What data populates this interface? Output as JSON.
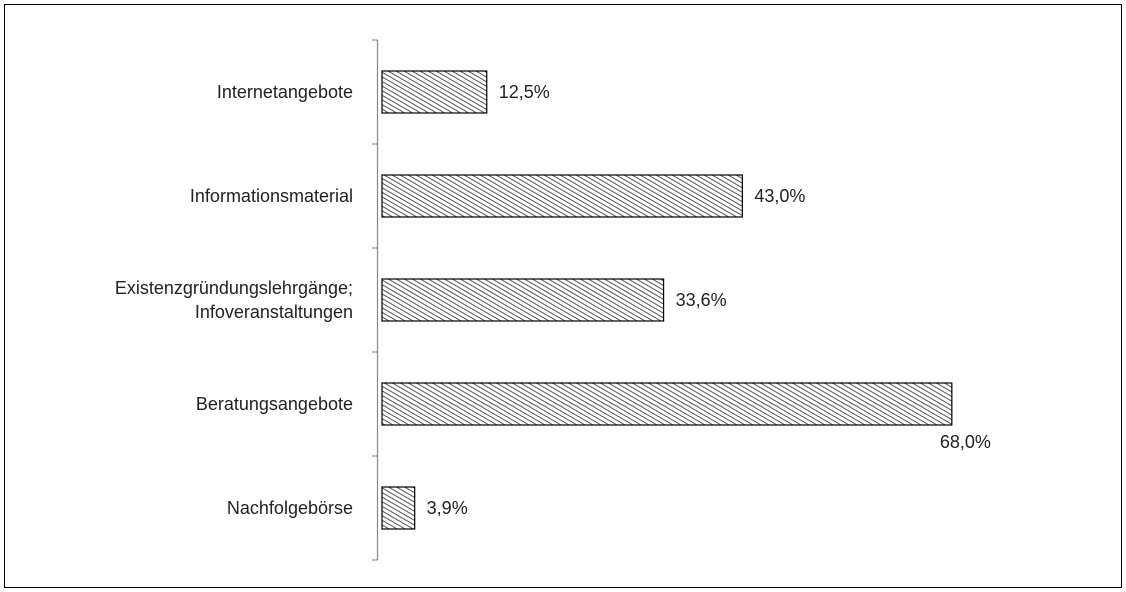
{
  "chart_data": {
    "type": "bar",
    "orientation": "horizontal",
    "categories": [
      "Internetangebote",
      "Informationsmaterial",
      "Existenzgründungslehrgänge; Infoveranstaltungen",
      "Beratungsangebote",
      "Nachfolgebörse"
    ],
    "values": [
      12.5,
      43.0,
      33.6,
      68.0,
      3.9
    ],
    "value_labels": [
      "12,5%",
      "43,0%",
      "33,6%",
      "68,0%",
      "3,9%"
    ],
    "color": "#555555"
  }
}
